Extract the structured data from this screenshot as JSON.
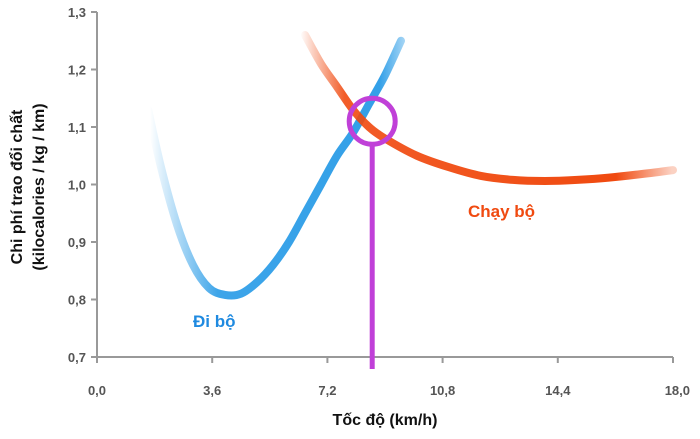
{
  "chart_data": {
    "type": "line",
    "title": "",
    "xlabel": "Tốc độ (km/h)",
    "ylabel_lines": [
      "Chi phí trao đổi chất",
      "(kilocalories / kg / km)"
    ],
    "xlim": [
      0,
      18
    ],
    "ylim": [
      0.7,
      1.3
    ],
    "x_ticks": [
      "0,0",
      "3,6",
      "7,2",
      "10,8",
      "14,4",
      "18,0"
    ],
    "y_ticks": [
      "0,7",
      "0,8",
      "0,9",
      "1,0",
      "1,1",
      "1,2",
      "1,3"
    ],
    "x_tick_values": [
      0,
      3.6,
      7.2,
      10.8,
      14.4,
      18.0
    ],
    "y_tick_values": [
      0.7,
      0.8,
      0.9,
      1.0,
      1.1,
      1.2,
      1.3
    ],
    "series": [
      {
        "name": "Đi bộ",
        "color": "#33a0e8",
        "x": [
          1.6,
          2.0,
          2.5,
          3.0,
          3.5,
          4.0,
          4.5,
          5.0,
          5.5,
          6.0,
          6.5,
          7.0,
          7.5,
          8.0,
          8.5,
          9.0,
          9.5
        ],
        "values": [
          1.13,
          1.03,
          0.93,
          0.86,
          0.82,
          0.808,
          0.81,
          0.83,
          0.86,
          0.9,
          0.95,
          1.0,
          1.05,
          1.09,
          1.14,
          1.19,
          1.25
        ]
      },
      {
        "name": "Chạy bộ",
        "color": "#f04a10",
        "x": [
          6.5,
          7.0,
          7.5,
          8.0,
          8.5,
          9.0,
          10.0,
          11.0,
          12.0,
          13.0,
          14.0,
          15.0,
          16.0,
          17.0,
          18.0
        ],
        "values": [
          1.26,
          1.21,
          1.17,
          1.13,
          1.1,
          1.08,
          1.05,
          1.03,
          1.015,
          1.008,
          1.006,
          1.008,
          1.012,
          1.018,
          1.025
        ]
      }
    ],
    "annotations": {
      "intersection": {
        "x": 8.6,
        "y": 1.11,
        "color": "#c040d8"
      },
      "vertical_line_x": 8.6
    }
  }
}
